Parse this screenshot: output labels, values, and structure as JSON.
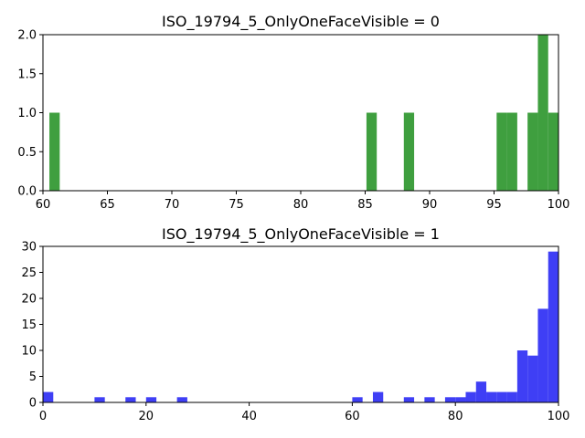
{
  "chart_data": [
    {
      "type": "bar",
      "title": "ISO_19794_5_OnlyOneFaceVisible = 0",
      "xlabel": "",
      "ylabel": "",
      "xlim": [
        60,
        100
      ],
      "ylim": [
        0,
        2.0
      ],
      "xticks": [
        60,
        65,
        70,
        75,
        80,
        85,
        90,
        95,
        100
      ],
      "yticks": [
        "0.0",
        "0.5",
        "1.0",
        "1.5",
        "2.0"
      ],
      "bin_width": 0.8,
      "color": "#3f9f3f",
      "bins": [
        {
          "x": 60.5,
          "value": 1
        },
        {
          "x": 85.1,
          "value": 1
        },
        {
          "x": 88.0,
          "value": 1
        },
        {
          "x": 95.2,
          "value": 1
        },
        {
          "x": 96.0,
          "value": 1
        },
        {
          "x": 97.6,
          "value": 1
        },
        {
          "x": 98.4,
          "value": 2
        },
        {
          "x": 99.2,
          "value": 1
        }
      ]
    },
    {
      "type": "bar",
      "title": "ISO_19794_5_OnlyOneFaceVisible = 1",
      "xlabel": "",
      "ylabel": "",
      "xlim": [
        0,
        100
      ],
      "ylim": [
        0,
        30
      ],
      "xticks": [
        0,
        20,
        40,
        60,
        80,
        100
      ],
      "yticks": [
        "0",
        "5",
        "10",
        "15",
        "20",
        "25",
        "30"
      ],
      "bin_width": 2,
      "color": "#3f3ff5",
      "bins": [
        {
          "x": 0,
          "value": 2
        },
        {
          "x": 10,
          "value": 1
        },
        {
          "x": 16,
          "value": 1
        },
        {
          "x": 20,
          "value": 1
        },
        {
          "x": 26,
          "value": 1
        },
        {
          "x": 60,
          "value": 1
        },
        {
          "x": 64,
          "value": 2
        },
        {
          "x": 70,
          "value": 1
        },
        {
          "x": 74,
          "value": 1
        },
        {
          "x": 78,
          "value": 1
        },
        {
          "x": 80,
          "value": 1
        },
        {
          "x": 82,
          "value": 2
        },
        {
          "x": 84,
          "value": 4
        },
        {
          "x": 86,
          "value": 2
        },
        {
          "x": 88,
          "value": 2
        },
        {
          "x": 90,
          "value": 2
        },
        {
          "x": 92,
          "value": 10
        },
        {
          "x": 94,
          "value": 9
        },
        {
          "x": 96,
          "value": 18
        },
        {
          "x": 98,
          "value": 29
        }
      ]
    }
  ]
}
